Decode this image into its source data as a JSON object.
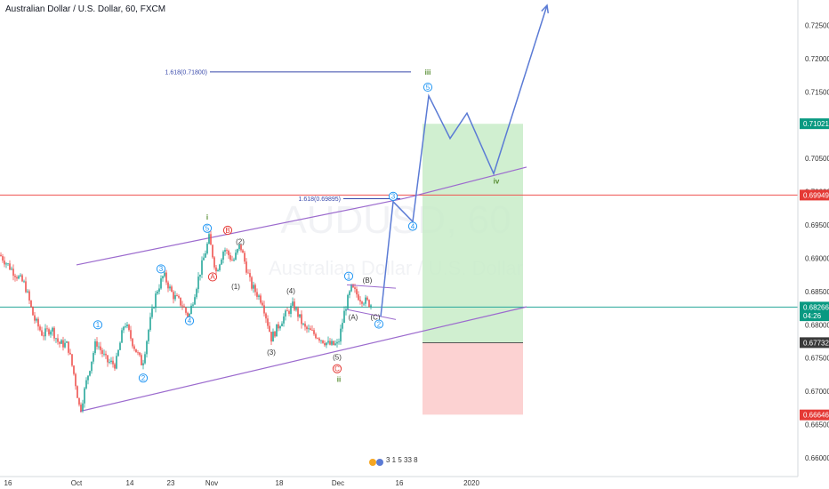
{
  "header": {
    "title": "Australian Dollar / U.S. Dollar, 60, FXCM"
  },
  "watermark": {
    "symbol": "AUDUSD, 60",
    "name": "Australian Dollar / U.S. Dollar"
  },
  "colors": {
    "up": "#26a69a",
    "down": "#ef5350",
    "projection": "#5b7bd5",
    "channel": "#9c6bce",
    "fib": "#3949ab",
    "target_zone": "#c8ecc8",
    "stop_zone": "#fbcaca",
    "wave_label": "#2196f3",
    "wave_red": "#e53935",
    "wave_green": "#558b2f"
  },
  "chart_data": {
    "type": "candlestick",
    "title": "Australian Dollar / U.S. Dollar, 60, FXCM",
    "y_range": [
      0.6572,
      0.7288
    ],
    "x_range": [
      0,
      930
    ],
    "y_ticks": [
      "0.72500",
      "0.72000",
      "0.71500",
      "0.70500",
      "0.70000",
      "0.69500",
      "0.69000",
      "0.68500",
      "0.68000",
      "0.67500",
      "0.67000",
      "0.66500",
      "0.66000"
    ],
    "x_ticks": [
      "16",
      "Oct",
      "14",
      "23",
      "Nov",
      "18",
      "Dec",
      "16",
      "2020"
    ],
    "price_badges": [
      {
        "label": "0.71021",
        "value": 0.71021,
        "color": "#089981"
      },
      {
        "label": "0.69949",
        "value": 0.69949,
        "color": "#e53935"
      },
      {
        "label": "0.68266",
        "value": 0.68266,
        "color": "#089981"
      },
      {
        "label": "04:26",
        "value": 0.68136,
        "color": "#089981"
      },
      {
        "label": "0.67732",
        "value": 0.67732,
        "color": "#3a3a3a"
      },
      {
        "label": "0.66646",
        "value": 0.66646,
        "color": "#e53935"
      }
    ],
    "horizontal_lines": [
      {
        "value": 0.69949,
        "color": "#ef5350"
      },
      {
        "value": 0.68266,
        "color": "#26a69a"
      }
    ],
    "price_path": [
      [
        0,
        0.6905
      ],
      [
        15,
        0.688
      ],
      [
        28,
        0.686
      ],
      [
        38,
        0.681
      ],
      [
        48,
        0.6785
      ],
      [
        58,
        0.6795
      ],
      [
        66,
        0.6772
      ],
      [
        76,
        0.677
      ],
      [
        84,
        0.672
      ],
      [
        90,
        0.667
      ],
      [
        98,
        0.672
      ],
      [
        108,
        0.6775
      ],
      [
        120,
        0.6745
      ],
      [
        130,
        0.674
      ],
      [
        140,
        0.6805
      ],
      [
        150,
        0.677
      ],
      [
        160,
        0.674
      ],
      [
        168,
        0.68
      ],
      [
        176,
        0.685
      ],
      [
        184,
        0.6875
      ],
      [
        194,
        0.6845
      ],
      [
        205,
        0.683
      ],
      [
        212,
        0.681
      ],
      [
        222,
        0.6865
      ],
      [
        235,
        0.693
      ],
      [
        243,
        0.688
      ],
      [
        252,
        0.6915
      ],
      [
        262,
        0.6895
      ],
      [
        270,
        0.692
      ],
      [
        282,
        0.686
      ],
      [
        295,
        0.6835
      ],
      [
        305,
        0.678
      ],
      [
        318,
        0.681
      ],
      [
        330,
        0.683
      ],
      [
        342,
        0.6795
      ],
      [
        355,
        0.6785
      ],
      [
        370,
        0.677
      ],
      [
        380,
        0.677
      ],
      [
        388,
        0.6825
      ],
      [
        395,
        0.6855
      ],
      [
        405,
        0.684
      ],
      [
        418,
        0.683
      ]
    ],
    "channel": [
      {
        "from": [
          86,
          0.689
        ],
        "to": [
          455,
          0.699
        ]
      },
      {
        "from": [
          90,
          0.667
        ],
        "to": [
          592,
          0.6827
        ]
      },
      {
        "from": [
          455,
          0.699
        ],
        "to": [
          592,
          0.7037
        ]
      }
    ],
    "flag_lines": [
      {
        "from": [
          390,
          0.686
        ],
        "to": [
          445,
          0.6855
        ]
      },
      {
        "from": [
          390,
          0.6823
        ],
        "to": [
          445,
          0.6808
        ]
      }
    ],
    "projection": [
      [
        428,
        0.6812
      ],
      [
        442,
        0.6985
      ],
      [
        464,
        0.6955
      ],
      [
        482,
        0.7144
      ],
      [
        506,
        0.708
      ],
      [
        525,
        0.7118
      ],
      [
        555,
        0.7027
      ],
      [
        615,
        0.728
      ]
    ],
    "target_zone": {
      "x": [
        475,
        588
      ],
      "y": [
        0.6773,
        0.7102
      ]
    },
    "stop_zone": {
      "x": [
        475,
        588
      ],
      "y": [
        0.6665,
        0.6773
      ]
    },
    "fib_lines": [
      {
        "label": "1.618(0.71800)",
        "value": 0.718,
        "x": [
          236,
          462
        ]
      },
      {
        "label": "1.618(0.69895)",
        "value": 0.69895,
        "x": [
          386,
          450
        ]
      }
    ],
    "wave_labels": [
      {
        "text": "1",
        "x": 110,
        "y": 0.68,
        "style": "circle"
      },
      {
        "text": "2",
        "x": 161,
        "y": 0.672,
        "style": "circle"
      },
      {
        "text": "3",
        "x": 181,
        "y": 0.6884,
        "style": "circle"
      },
      {
        "text": "4",
        "x": 213,
        "y": 0.6806,
        "style": "circle"
      },
      {
        "text": "5",
        "x": 233,
        "y": 0.6945,
        "style": "circle"
      },
      {
        "text": "i",
        "x": 233,
        "y": 0.6962,
        "style": "roman"
      },
      {
        "text": "B",
        "x": 256,
        "y": 0.6942,
        "style": "circle-red"
      },
      {
        "text": "(2)",
        "x": 270,
        "y": 0.6925,
        "style": "paren"
      },
      {
        "text": "A",
        "x": 239,
        "y": 0.6872,
        "style": "circle-red"
      },
      {
        "text": "(1)",
        "x": 265,
        "y": 0.6858,
        "style": "paren"
      },
      {
        "text": "(4)",
        "x": 327,
        "y": 0.6851,
        "style": "paren"
      },
      {
        "text": "(3)",
        "x": 305,
        "y": 0.6759,
        "style": "paren"
      },
      {
        "text": "(5)",
        "x": 379,
        "y": 0.6752,
        "style": "paren"
      },
      {
        "text": "C",
        "x": 379,
        "y": 0.6734,
        "style": "circle-red"
      },
      {
        "text": "ii",
        "x": 381,
        "y": 0.6718,
        "style": "roman"
      },
      {
        "text": "1",
        "x": 392,
        "y": 0.6873,
        "style": "circle"
      },
      {
        "text": "(B)",
        "x": 413,
        "y": 0.6867,
        "style": "paren"
      },
      {
        "text": "(A)",
        "x": 397,
        "y": 0.6812,
        "style": "paren"
      },
      {
        "text": "(C)",
        "x": 422,
        "y": 0.6812,
        "style": "paren"
      },
      {
        "text": "2",
        "x": 426,
        "y": 0.6801,
        "style": "circle"
      },
      {
        "text": "3",
        "x": 442,
        "y": 0.6993,
        "style": "circle"
      },
      {
        "text": "4",
        "x": 464,
        "y": 0.6948,
        "style": "circle"
      },
      {
        "text": "5",
        "x": 481,
        "y": 0.7157,
        "style": "circle"
      },
      {
        "text": "iii",
        "x": 481,
        "y": 0.718,
        "style": "roman"
      },
      {
        "text": "iv",
        "x": 558,
        "y": 0.7016,
        "style": "roman"
      }
    ],
    "events_marker": "3 1 5 33 8"
  }
}
